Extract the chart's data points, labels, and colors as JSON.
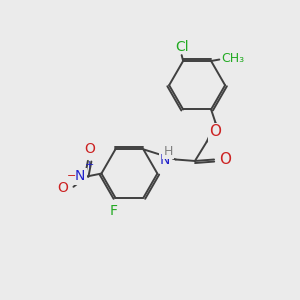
{
  "background_color": "#ebebeb",
  "atom_colors": {
    "C": "#404040",
    "H": "#808080",
    "N": "#2222cc",
    "O": "#cc2222",
    "F": "#22aa22",
    "Cl": "#22aa22",
    "CH3": "#22aa22"
  },
  "bond_color": "#404040",
  "bond_width": 1.4,
  "font_size": 9,
  "fig_size": [
    3.0,
    3.0
  ],
  "dpi": 100
}
